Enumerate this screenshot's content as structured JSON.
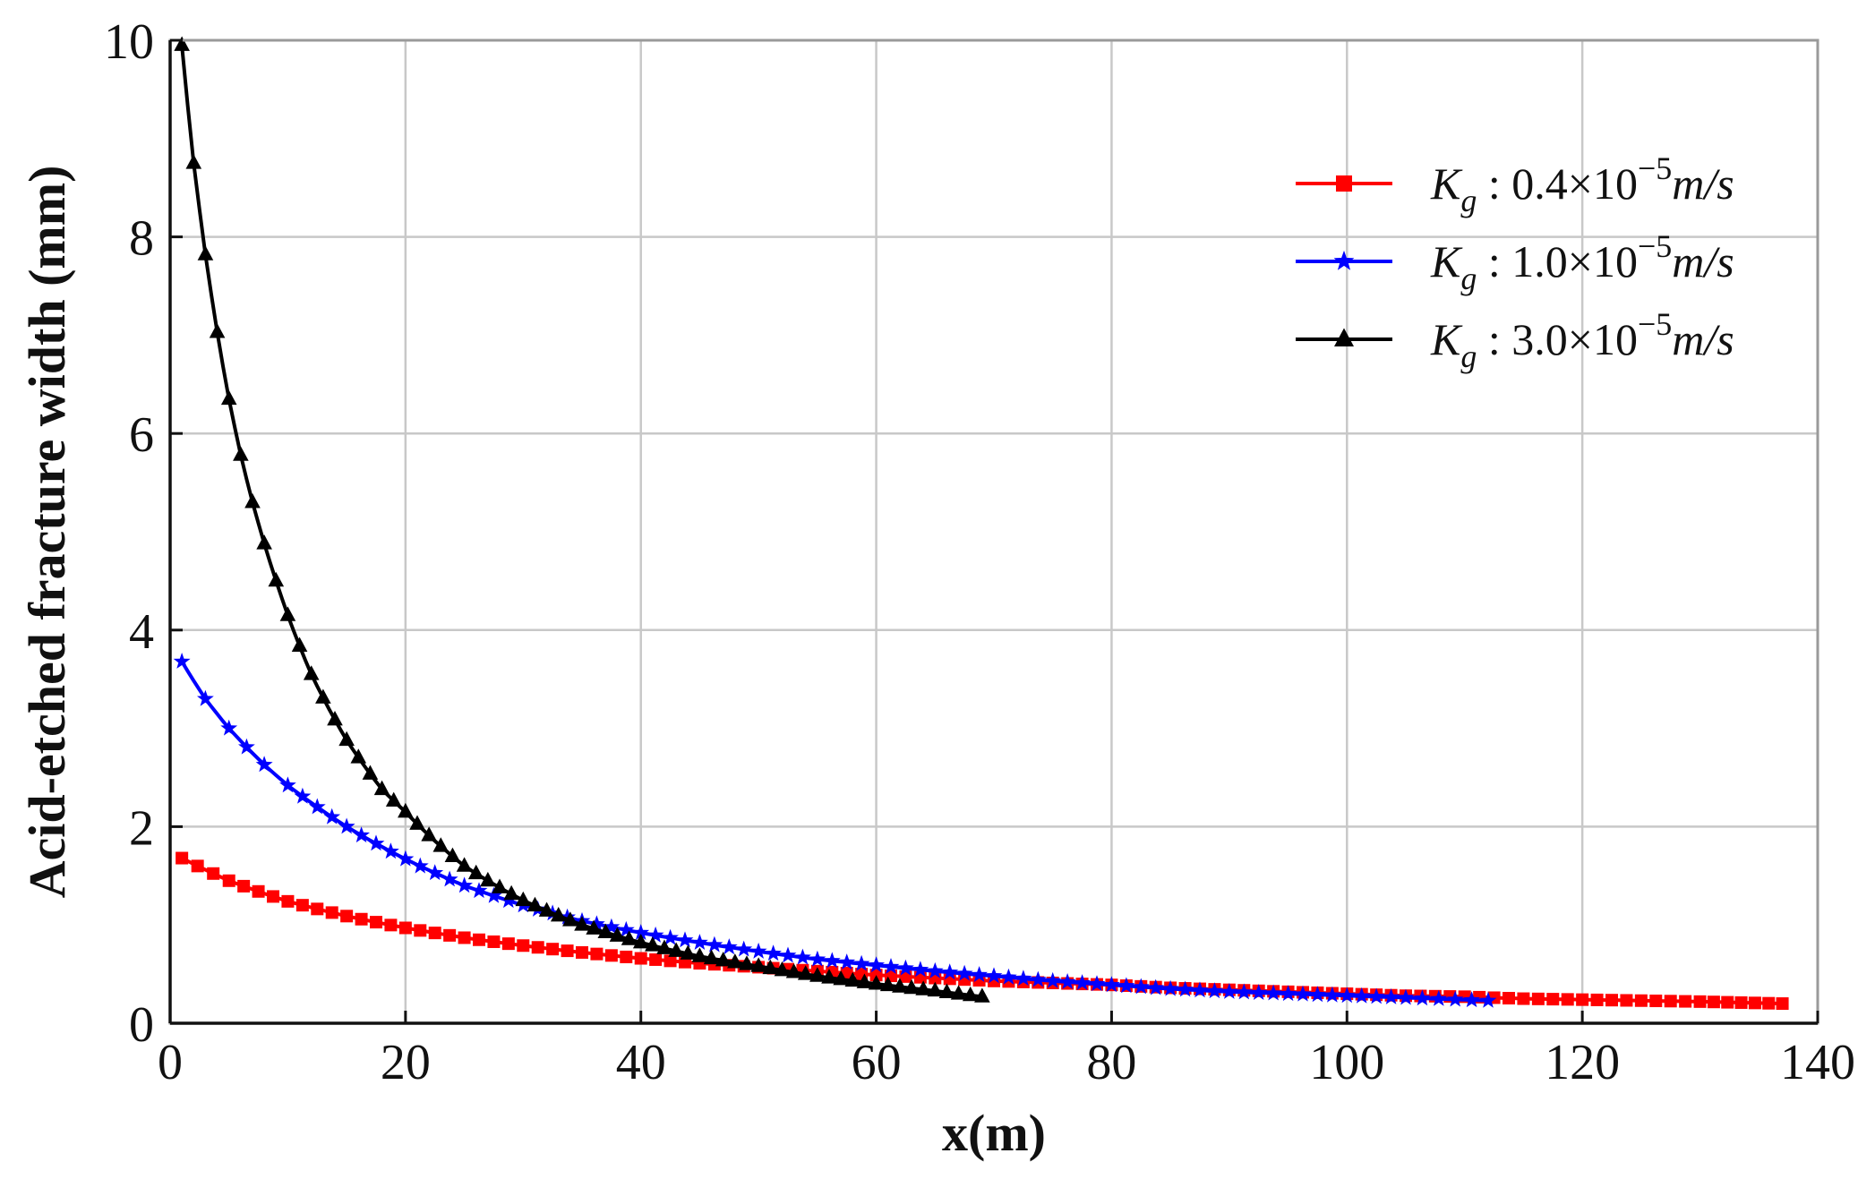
{
  "chart_data": {
    "type": "line",
    "title": "",
    "xlabel": "x(m)",
    "ylabel": "Acid-etched fracture width (mm)",
    "xlim": [
      0,
      140
    ],
    "ylim": [
      0,
      10
    ],
    "xticks": [
      "0",
      "20",
      "40",
      "60",
      "80",
      "100",
      "120",
      "140"
    ],
    "yticks": [
      "0",
      "2",
      "4",
      "6",
      "8",
      "10"
    ],
    "grid": true,
    "legend_position": "top-right",
    "series": [
      {
        "name": "Kg : 0.4×10⁻⁵m/s",
        "legend": {
          "sym": "K",
          "sub": "g",
          "mid": " : 0.4×10",
          "sup": "−5",
          "unit": "m/s"
        },
        "color": "#ff0000",
        "marker": "square",
        "x": [
          1,
          5,
          10,
          15,
          20,
          25,
          30,
          35,
          40,
          45,
          50,
          55,
          60,
          65,
          70,
          75,
          80,
          85,
          90,
          95,
          100,
          105,
          110,
          115,
          120,
          125,
          130,
          137
        ],
        "y": [
          1.68,
          1.45,
          1.24,
          1.09,
          0.97,
          0.87,
          0.79,
          0.72,
          0.66,
          0.61,
          0.57,
          0.53,
          0.49,
          0.46,
          0.43,
          0.41,
          0.39,
          0.36,
          0.34,
          0.32,
          0.3,
          0.28,
          0.27,
          0.25,
          0.24,
          0.23,
          0.22,
          0.2
        ]
      },
      {
        "name": "Kg : 1.0×10⁻⁵m/s",
        "legend": {
          "sym": "K",
          "sub": "g",
          "mid": " : 1.0×10",
          "sup": "−5",
          "unit": "m/s"
        },
        "color": "#0000ff",
        "marker": "star",
        "x": [
          1,
          3,
          5,
          8,
          10,
          15,
          20,
          25,
          30,
          35,
          40,
          45,
          50,
          55,
          60,
          65,
          70,
          75,
          80,
          85,
          90,
          95,
          100,
          105,
          112
        ],
        "y": [
          3.68,
          3.3,
          3.0,
          2.63,
          2.42,
          2.0,
          1.67,
          1.4,
          1.2,
          1.04,
          0.92,
          0.82,
          0.73,
          0.65,
          0.59,
          0.53,
          0.48,
          0.43,
          0.39,
          0.35,
          0.32,
          0.3,
          0.28,
          0.26,
          0.23
        ]
      },
      {
        "name": "Kg : 3.0×10⁻⁵m/s",
        "legend": {
          "sym": "K",
          "sub": "g",
          "mid": " : 3.0×10",
          "sup": "−5",
          "unit": "m/s"
        },
        "color": "#000000",
        "marker": "triangle",
        "x": [
          1,
          2,
          3,
          4,
          5,
          6,
          7,
          8,
          9,
          10,
          12,
          15,
          18,
          20,
          25,
          30,
          35,
          40,
          45,
          50,
          55,
          60,
          65,
          69
        ],
        "y": [
          9.95,
          8.75,
          7.82,
          7.03,
          6.35,
          5.78,
          5.3,
          4.88,
          4.5,
          4.15,
          3.55,
          2.88,
          2.38,
          2.15,
          1.6,
          1.25,
          1.0,
          0.82,
          0.68,
          0.58,
          0.48,
          0.4,
          0.33,
          0.27
        ]
      }
    ]
  }
}
